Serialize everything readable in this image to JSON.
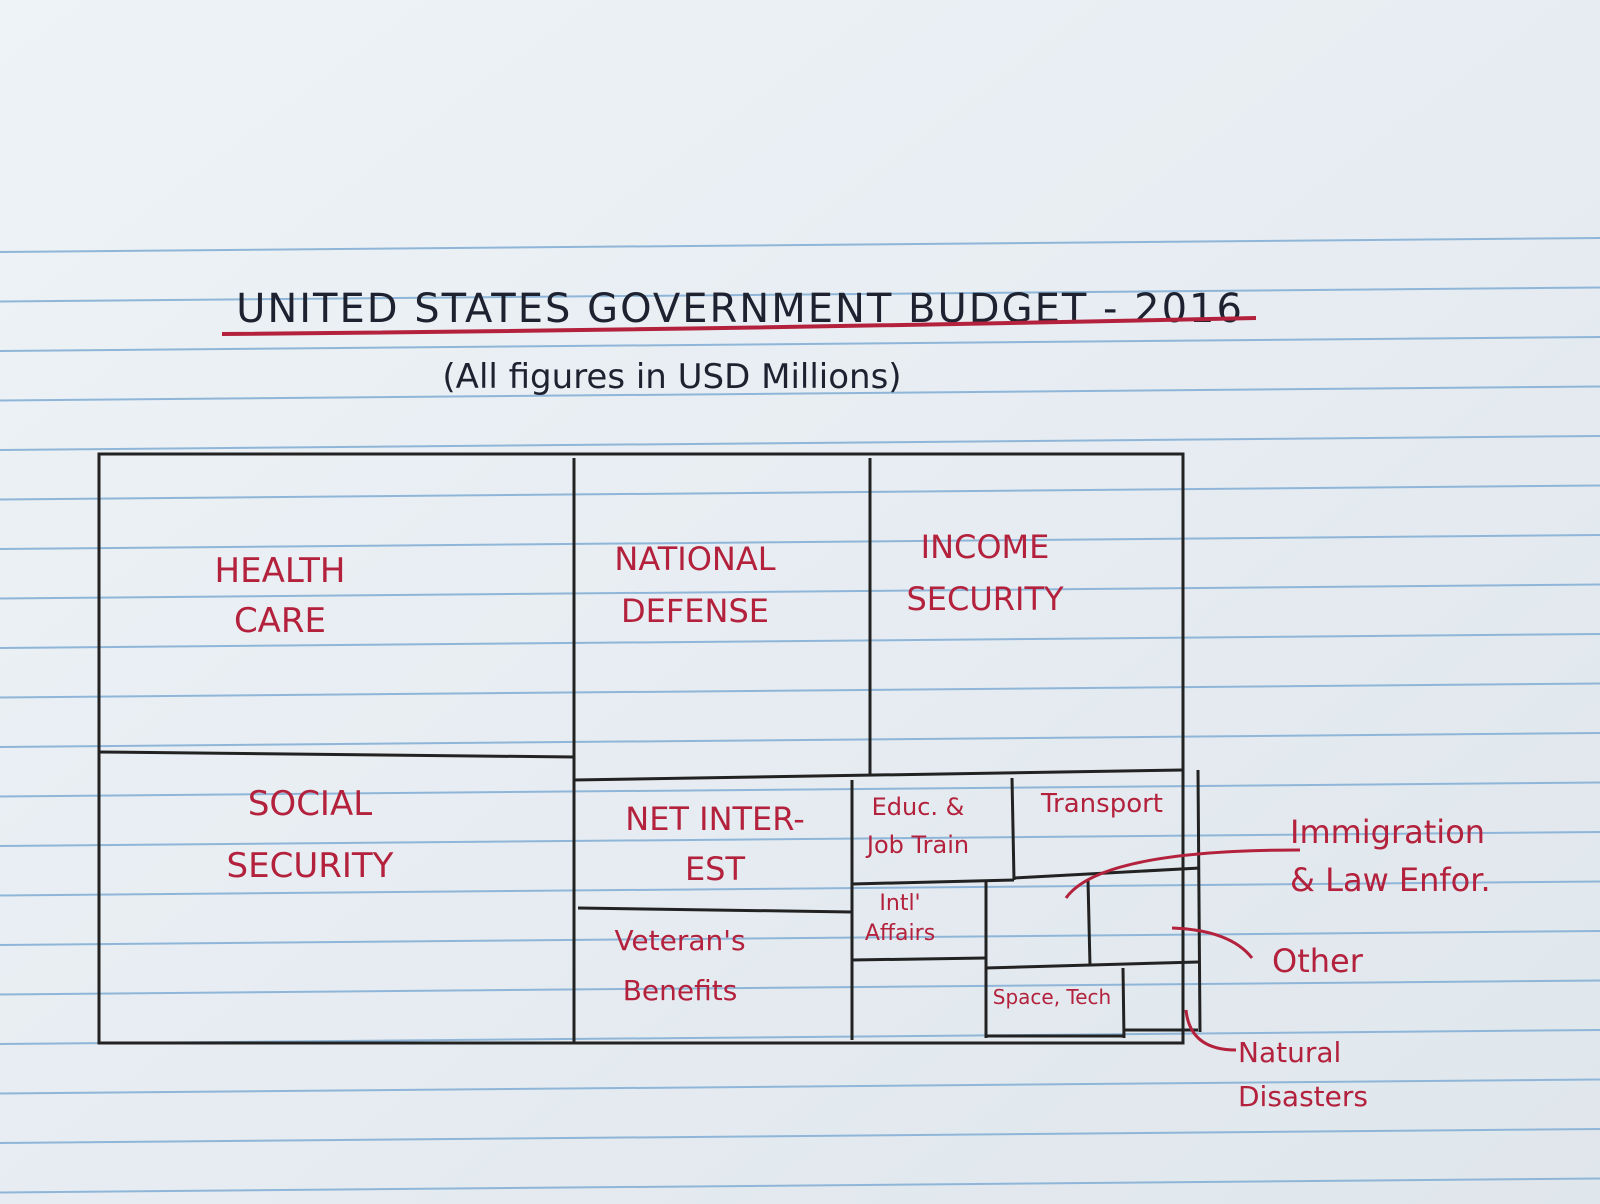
{
  "title": "UNITED STATES GOVERNMENT BUDGET - 2016",
  "subtitle": "(All figures in USD Millions)",
  "nodes": [
    {
      "lines": [
        "HEALTH",
        "CARE"
      ]
    },
    {
      "lines": [
        "SOCIAL",
        "SECURITY"
      ]
    },
    {
      "lines": [
        "NATIONAL",
        "DEFENSE"
      ]
    },
    {
      "lines": [
        "INCOME",
        "SECURITY"
      ]
    },
    {
      "lines": [
        "NET INTER-",
        "EST"
      ]
    },
    {
      "lines": [
        "Veteran's",
        "Benefits"
      ]
    },
    {
      "lines": [
        "Educ. &",
        "Job Train"
      ]
    },
    {
      "lines": [
        "Transport"
      ]
    },
    {
      "lines": [
        "Intl'",
        "Affairs"
      ]
    },
    {
      "lines": [
        "Space, Tech"
      ]
    }
  ],
  "callouts": [
    {
      "lines": [
        "Immigration",
        "& Law Enfor."
      ]
    },
    {
      "lines": [
        "Other"
      ]
    },
    {
      "lines": [
        "Natural",
        "Disasters"
      ]
    }
  ]
}
